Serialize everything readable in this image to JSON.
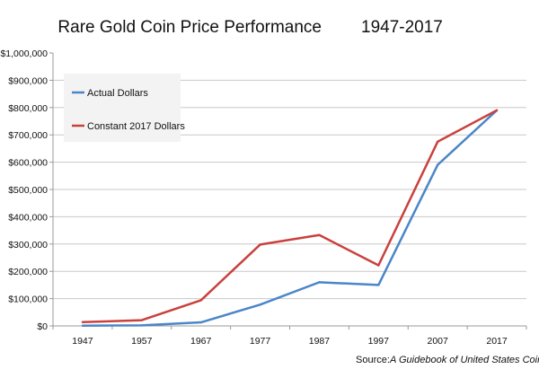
{
  "chart_data": {
    "type": "line",
    "title": "Rare Gold Coin Price Performance",
    "title_years": "1947-2017",
    "categories": [
      "1947",
      "1957",
      "1967",
      "1977",
      "1987",
      "1997",
      "2007",
      "2017"
    ],
    "series": [
      {
        "name": "Actual Dollars",
        "color": "#4a86c8",
        "values": [
          1000,
          2000,
          13000,
          78000,
          160000,
          150000,
          590000,
          790000
        ]
      },
      {
        "name": "Constant 2017 Dollars",
        "color": "#c9413d",
        "values": [
          14000,
          21000,
          94000,
          298000,
          333000,
          222000,
          675000,
          790000
        ]
      }
    ],
    "ylim": [
      0,
      1000000
    ],
    "yticks": [
      0,
      100000,
      200000,
      300000,
      400000,
      500000,
      600000,
      700000,
      800000,
      900000,
      1000000
    ],
    "ytick_labels": [
      "$0",
      "$100,000",
      "$200,000",
      "$300,000",
      "$400,000",
      "$500,000",
      "$600,000",
      "$700,000",
      "$800,000",
      "$900,000",
      "$1,000,000"
    ],
    "grid": true,
    "legend_position": "top-left",
    "source_label": "Source:",
    "source_text": "A Guidebook of United States Coins"
  }
}
